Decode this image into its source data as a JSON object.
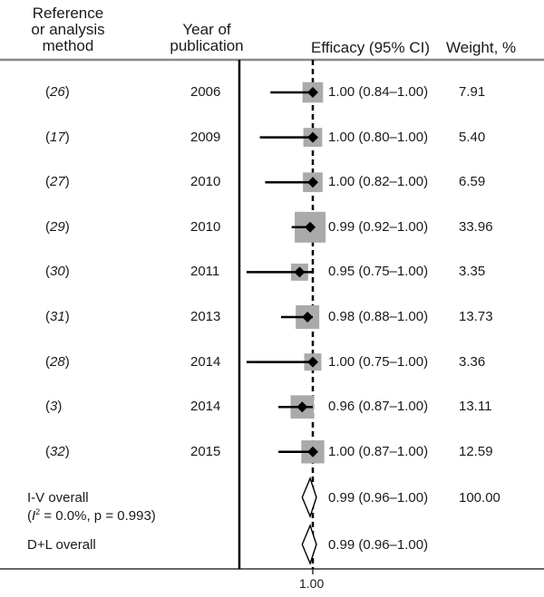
{
  "headers": {
    "reference": [
      "Reference",
      "or analysis",
      "method"
    ],
    "year": [
      "Year of",
      "publication"
    ],
    "efficacy": "Efficacy (95% CI)",
    "weight": "Weight, %"
  },
  "chart_data": {
    "type": "forest",
    "xlabel": "",
    "reference_line": 1.0,
    "x_tick_labels": [
      "1.00"
    ],
    "xlim": [
      0.74,
      1.01
    ],
    "studies": [
      {
        "ref": "26",
        "year": "2006",
        "estimate": 1.0,
        "ci_low": 0.84,
        "ci_high": 1.0,
        "ci_text": "1.00 (0.84–1.00)",
        "weight": "7.91"
      },
      {
        "ref": "17",
        "year": "2009",
        "estimate": 1.0,
        "ci_low": 0.8,
        "ci_high": 1.0,
        "ci_text": "1.00 (0.80–1.00)",
        "weight": "5.40"
      },
      {
        "ref": "27",
        "year": "2010",
        "estimate": 1.0,
        "ci_low": 0.82,
        "ci_high": 1.0,
        "ci_text": "1.00 (0.82–1.00)",
        "weight": "6.59"
      },
      {
        "ref": "29",
        "year": "2010",
        "estimate": 0.99,
        "ci_low": 0.92,
        "ci_high": 1.0,
        "ci_text": "0.99 (0.92–1.00)",
        "weight": "33.96"
      },
      {
        "ref": "30",
        "year": "2011",
        "estimate": 0.95,
        "ci_low": 0.75,
        "ci_high": 1.0,
        "ci_text": "0.95 (0.75–1.00)",
        "weight": "3.35"
      },
      {
        "ref": "31",
        "year": "2013",
        "estimate": 0.98,
        "ci_low": 0.88,
        "ci_high": 1.0,
        "ci_text": "0.98 (0.88–1.00)",
        "weight": "13.73"
      },
      {
        "ref": "28",
        "year": "2014",
        "estimate": 1.0,
        "ci_low": 0.75,
        "ci_high": 1.0,
        "ci_text": "1.00 (0.75–1.00)",
        "weight": "3.36"
      },
      {
        "ref": "3",
        "year": "2014",
        "estimate": 0.96,
        "ci_low": 0.87,
        "ci_high": 1.0,
        "ci_text": "0.96 (0.87–1.00)",
        "weight": "13.11"
      },
      {
        "ref": "32",
        "year": "2015",
        "estimate": 1.0,
        "ci_low": 0.87,
        "ci_high": 1.0,
        "ci_text": "1.00 (0.87–1.00)",
        "weight": "12.59"
      }
    ],
    "overall": [
      {
        "label": "I-V overall",
        "sublabel_italic": "I",
        "sublabel_sup": "2",
        "sublabel_rest": " = 0.0%, p = 0.993)",
        "estimate": 0.99,
        "ci_low": 0.96,
        "ci_high": 1.0,
        "ci_text": "0.99 (0.96–1.00)",
        "weight": "100.00"
      },
      {
        "label": "D+L overall",
        "estimate": 0.99,
        "ci_low": 0.96,
        "ci_high": 1.0,
        "ci_text": "0.99 (0.96–1.00)",
        "weight": ""
      }
    ],
    "colors": {
      "box": "#aaaaaa",
      "line": "#000000",
      "axis": "#888888"
    }
  }
}
